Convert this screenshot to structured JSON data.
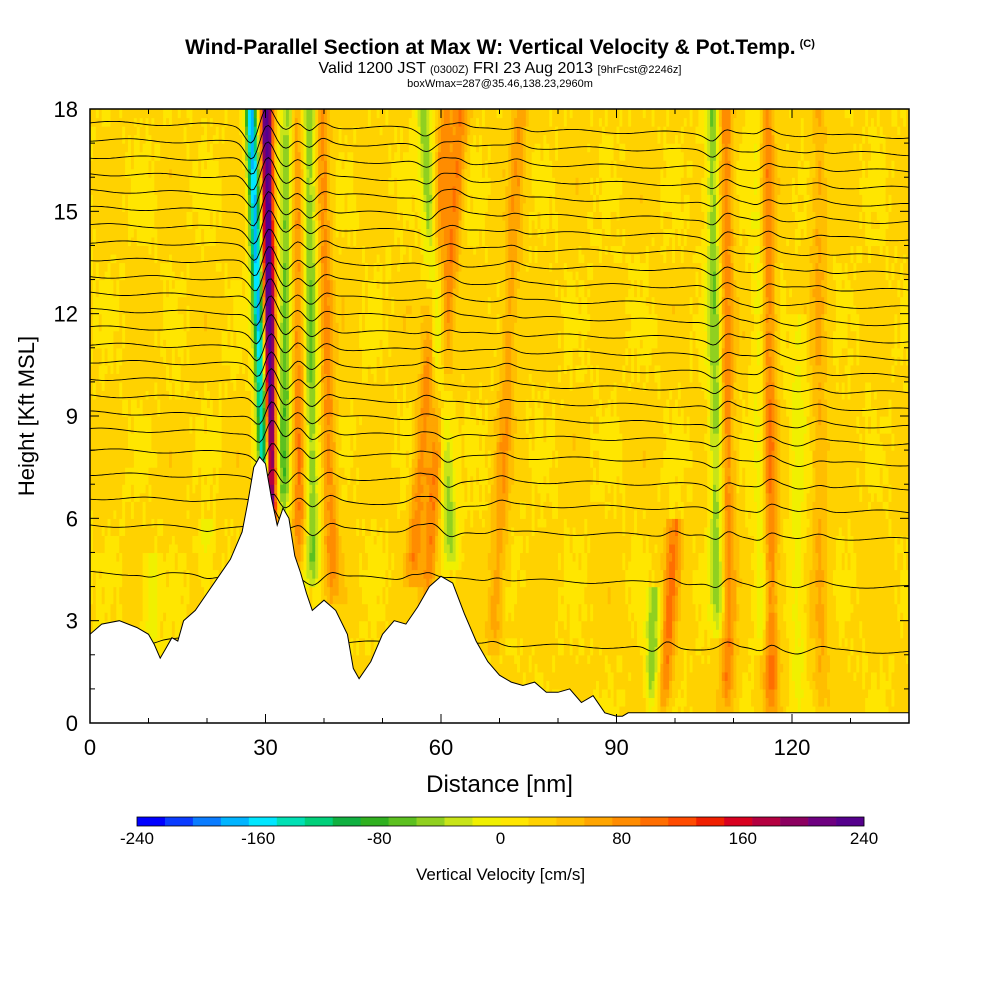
{
  "chart_data": {
    "type": "heatmap",
    "title": "Wind-Parallel Section at Max W: Vertical Velocity & Pot.Temp.",
    "title_tag": "(C)",
    "subtitle_prefix": "Valid 1200 JST",
    "subtitle_utc": "(0300Z)",
    "subtitle_date": "FRI 23 Aug 2013",
    "subtitle_fcst": "[9hrFcst@2246z]",
    "subtitle2": "boxWmax=287@35.46,138.23,2960m",
    "xlabel": "Distance [nm]",
    "ylabel": "Height [Kft MSL]",
    "xlim": [
      0,
      140
    ],
    "ylim": [
      0,
      18
    ],
    "x_ticks": [
      "0",
      "30",
      "60",
      "90",
      "120"
    ],
    "x_tick_values": [
      0,
      30,
      60,
      90,
      120
    ],
    "y_ticks": [
      "0",
      "3",
      "6",
      "9",
      "12",
      "15",
      "18"
    ],
    "y_tick_values": [
      0,
      3,
      6,
      9,
      12,
      15,
      18
    ],
    "colorbar": {
      "label": "Vertical Velocity [cm/s]",
      "min": -240,
      "max": 240,
      "tick_labels": [
        "-240",
        "-160",
        "-80",
        "0",
        "80",
        "160",
        "240"
      ],
      "tick_values": [
        -240,
        -160,
        -80,
        0,
        80,
        160,
        240
      ],
      "colors": [
        "#0000ff",
        "#0a3cff",
        "#0a7cff",
        "#00b4ff",
        "#00e6ff",
        "#00e0b4",
        "#00d07a",
        "#10b040",
        "#30b020",
        "#5cc020",
        "#90d020",
        "#c8e418",
        "#f0f000",
        "#ffe600",
        "#ffd200",
        "#ffbe00",
        "#ffa500",
        "#ff8c00",
        "#ff6e00",
        "#ff4b00",
        "#f02000",
        "#d80020",
        "#b40040",
        "#8c0060",
        "#6e0080",
        "#55008c"
      ]
    },
    "terrain_profile": {
      "x": [
        0,
        2,
        5,
        8,
        10,
        11,
        12,
        13,
        14,
        15,
        16,
        18,
        20,
        22,
        24,
        26,
        27,
        28,
        29,
        30,
        31,
        32,
        33,
        34,
        35,
        36,
        37,
        38,
        40,
        42,
        44,
        45,
        46,
        48,
        50,
        52,
        54,
        56,
        58,
        60,
        62,
        64,
        66,
        68,
        70,
        72,
        74,
        76,
        78,
        80,
        82,
        84,
        86,
        88,
        90,
        91,
        92,
        94,
        100,
        110,
        120,
        130,
        140
      ],
      "y": [
        2.6,
        2.9,
        3.0,
        2.8,
        2.6,
        2.3,
        1.9,
        2.2,
        2.5,
        2.4,
        3.0,
        3.3,
        3.8,
        4.3,
        4.8,
        5.6,
        6.5,
        7.5,
        7.8,
        7.6,
        6.6,
        5.8,
        6.3,
        6.0,
        4.9,
        4.4,
        3.8,
        3.3,
        3.6,
        3.3,
        2.6,
        1.6,
        1.3,
        1.8,
        2.6,
        3.0,
        2.9,
        3.4,
        4.0,
        4.3,
        4.1,
        3.2,
        2.4,
        1.8,
        1.4,
        1.2,
        1.1,
        1.2,
        0.9,
        0.9,
        1.0,
        0.6,
        0.8,
        0.3,
        0.2,
        0.2,
        0.3,
        0.3,
        0.3,
        0.3,
        0.3,
        0.3,
        0.3
      ]
    },
    "updraft_bands": [
      {
        "x_base": 31.0,
        "x_top": 30.2,
        "y_from": 5.5,
        "y_to": 18,
        "peak": 240
      },
      {
        "x_base": 36.0,
        "x_top": 35.0,
        "y_from": 4.5,
        "y_to": 18,
        "peak": 70
      },
      {
        "x_base": 41.5,
        "x_top": 39.5,
        "y_from": 3.5,
        "y_to": 18,
        "peak": 60
      },
      {
        "x_base": 55.0,
        "x_top": 61.0,
        "y_from": 4.0,
        "y_to": 18,
        "peak": 60
      },
      {
        "x_base": 57.5,
        "x_top": 63.5,
        "y_from": 3.5,
        "y_to": 18,
        "peak": 70
      },
      {
        "x_base": 69.0,
        "x_top": 73.5,
        "y_from": 2.0,
        "y_to": 18,
        "peak": 45
      },
      {
        "x_base": 98.0,
        "x_top": 100.0,
        "y_from": 0.3,
        "y_to": 6.0,
        "peak": 70
      },
      {
        "x_base": 109.0,
        "x_top": 108.5,
        "y_from": 0.3,
        "y_to": 18,
        "peak": 70
      },
      {
        "x_base": 116.5,
        "x_top": 115.5,
        "y_from": 0.3,
        "y_to": 18,
        "peak": 80
      },
      {
        "x_base": 125.0,
        "x_top": 124.5,
        "y_from": 0.3,
        "y_to": 18,
        "peak": 35
      }
    ],
    "downdraft_bands": [
      {
        "x_base": 30.0,
        "x_top": 27.5,
        "y_from": 6.5,
        "y_to": 18,
        "peak": -200
      },
      {
        "x_base": 33.0,
        "x_top": 34.0,
        "y_from": 6.0,
        "y_to": 18,
        "peak": -90
      },
      {
        "x_base": 38.0,
        "x_top": 37.5,
        "y_from": 4.0,
        "y_to": 18,
        "peak": -80
      },
      {
        "x_base": 62.0,
        "x_top": 57.0,
        "y_from": 4.5,
        "y_to": 18,
        "peak": -75
      },
      {
        "x_base": 96.0,
        "x_top": 96.5,
        "y_from": 0.3,
        "y_to": 4.0,
        "peak": -70
      },
      {
        "x_base": 107.5,
        "x_top": 106.5,
        "y_from": 2.5,
        "y_to": 18,
        "peak": -80
      },
      {
        "x_base": 115.0,
        "x_top": 114.5,
        "y_from": 2.0,
        "y_to": 18,
        "peak": -45
      },
      {
        "x_base": 121.0,
        "x_top": 121.0,
        "y_from": 0.3,
        "y_to": 12,
        "peak": -30
      },
      {
        "x_base": 10.5,
        "x_top": 10.5,
        "y_from": 2.0,
        "y_to": 5.0,
        "peak": -35
      },
      {
        "x_base": 20.0,
        "x_top": 20.0,
        "y_from": 3.5,
        "y_to": 6.0,
        "peak": -30
      }
    ],
    "theta_contours": {
      "base_heights": [
        0.0,
        2.5,
        4.4,
        5.8,
        6.6,
        7.3,
        8.0,
        8.6,
        9.1,
        9.6,
        10.1,
        10.6,
        11.1,
        11.6,
        12.1,
        12.6,
        13.1,
        13.6,
        14.1,
        14.6,
        15.1,
        15.6,
        16.1,
        16.6,
        17.1,
        17.6
      ],
      "tilt_per_nm": -0.003
    }
  }
}
